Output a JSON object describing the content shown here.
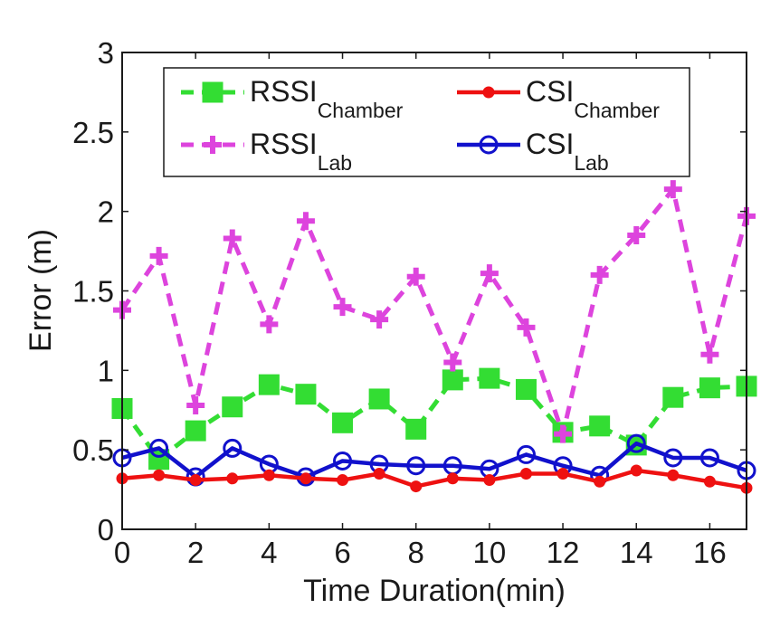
{
  "chart_data": {
    "type": "line",
    "title": "",
    "xlabel": "Time Duration(min)",
    "ylabel": "Error (m)",
    "xlim": [
      0,
      17
    ],
    "ylim": [
      0,
      3
    ],
    "xticks": [
      0,
      2,
      4,
      6,
      8,
      10,
      12,
      14,
      16
    ],
    "xtick_labels": [
      "0",
      "2",
      "4",
      "6",
      "8",
      "10",
      "12",
      "14",
      "16"
    ],
    "yticks": [
      0,
      0.5,
      1,
      1.5,
      2,
      2.5,
      3
    ],
    "ytick_labels": [
      "0",
      "0.5",
      "1",
      "1.5",
      "2",
      "2.5",
      "3"
    ],
    "grid": false,
    "legend_position": "top",
    "x": [
      0,
      1,
      2,
      3,
      4,
      5,
      6,
      7,
      8,
      9,
      10,
      11,
      12,
      13,
      14,
      15,
      16,
      17
    ],
    "series": [
      {
        "name": "RSSI",
        "subscript": "Chamber",
        "color": "#33dd33",
        "line_style": "dashed",
        "marker": "square",
        "values": [
          0.76,
          0.44,
          0.62,
          0.77,
          0.91,
          0.85,
          0.67,
          0.82,
          0.63,
          0.94,
          0.95,
          0.88,
          0.61,
          0.65,
          0.53,
          0.83,
          0.89,
          0.9
        ]
      },
      {
        "name": "CSI",
        "subscript": "Chamber",
        "color": "#ee1111",
        "line_style": "solid",
        "marker": "dot",
        "values": [
          0.32,
          0.34,
          0.31,
          0.32,
          0.34,
          0.32,
          0.31,
          0.35,
          0.27,
          0.32,
          0.31,
          0.35,
          0.35,
          0.3,
          0.37,
          0.34,
          0.3,
          0.26
        ]
      },
      {
        "name": "RSSI",
        "subscript": "Lab",
        "color": "#dd44dd",
        "line_style": "dashed",
        "marker": "plus",
        "values": [
          1.38,
          1.72,
          0.78,
          1.83,
          1.29,
          1.94,
          1.4,
          1.32,
          1.59,
          1.05,
          1.61,
          1.27,
          0.6,
          1.6,
          1.85,
          2.14,
          1.1,
          1.97
        ]
      },
      {
        "name": "CSI",
        "subscript": "Lab",
        "color": "#1111cc",
        "line_style": "solid",
        "marker": "circle",
        "values": [
          0.45,
          0.51,
          0.33,
          0.51,
          0.41,
          0.33,
          0.43,
          0.41,
          0.4,
          0.4,
          0.38,
          0.47,
          0.4,
          0.34,
          0.54,
          0.45,
          0.45,
          0.37
        ]
      }
    ]
  }
}
